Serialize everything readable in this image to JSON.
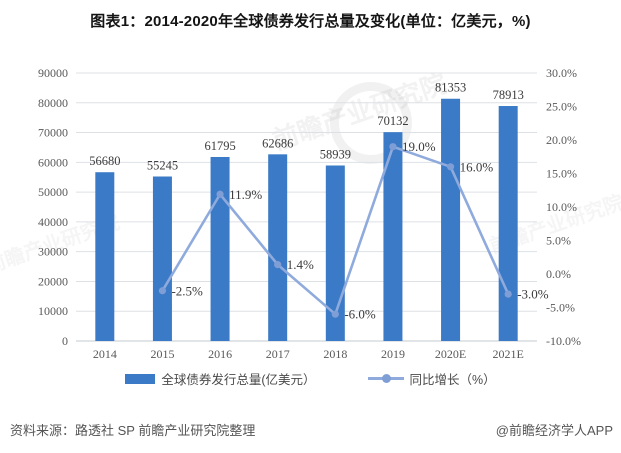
{
  "title": "图表1：2014-2020年全球债券发行总量及变化(单位：亿美元，%)",
  "watermark": {
    "text": "前瞻产业研究院"
  },
  "footer": {
    "source": "资料来源：路透社 SP 前瞻产业研究院整理",
    "brand": "@前瞻经济学人APP"
  },
  "chart_data": {
    "type": "combo bar+line",
    "title": "图表1：2014-2020年全球债券发行总量及变化(单位：亿美元，%)",
    "categories": [
      "2014",
      "2015",
      "2016",
      "2017",
      "2018",
      "2019",
      "2020E",
      "2021E"
    ],
    "series": [
      {
        "name": "全球债券发行总量(亿美元）",
        "type": "bar",
        "axis": "left",
        "color": "#3b7ac6",
        "values": [
          56680,
          55245,
          61795,
          62686,
          58939,
          70132,
          81353,
          78913
        ],
        "value_labels": [
          "56680",
          "55245",
          "61795",
          "62686",
          "58939",
          "70132",
          "81353",
          "78913"
        ]
      },
      {
        "name": "同比增长（%）",
        "type": "line",
        "axis": "right",
        "color": "#8faadc",
        "marker_color": "#7f9ed6",
        "values": [
          null,
          -2.5,
          11.9,
          1.4,
          -6.0,
          19.0,
          16.0,
          -3.0
        ],
        "value_labels": [
          null,
          "-2.5%",
          "11.9%",
          "1.4%",
          "-6.0%",
          "19.0%",
          "16.0%",
          "-3.0%"
        ]
      }
    ],
    "left_axis": {
      "min": 0,
      "max": 90000,
      "step": 10000,
      "ticks": [
        "0",
        "10000",
        "20000",
        "30000",
        "40000",
        "50000",
        "60000",
        "70000",
        "80000",
        "90000"
      ]
    },
    "right_axis": {
      "min": -10,
      "max": 30,
      "step": 5,
      "ticks": [
        "-10.0%",
        "-5.0%",
        "0.0%",
        "5.0%",
        "10.0%",
        "15.0%",
        "20.0%",
        "25.0%",
        "30.0%"
      ]
    },
    "grid": true,
    "grid_color": "#dde1e6",
    "baseline_color": "#c6cbd1",
    "legend_position": "bottom"
  }
}
